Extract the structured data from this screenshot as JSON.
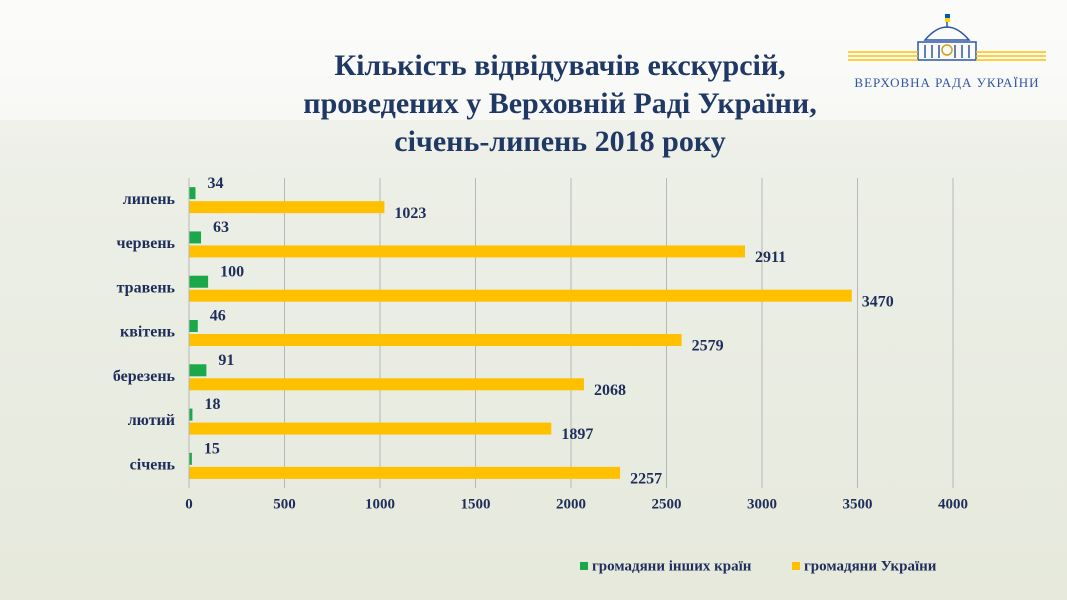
{
  "header": {
    "logo_text": "ВЕРХОВНА РАДА УКРАЇНИ"
  },
  "chart_data": {
    "type": "hbar",
    "title": [
      "Кількість відвідувачів екскурсій,",
      "проведених у Верховній Раді України,",
      "січень-липень 2018 року"
    ],
    "categories": [
      "липень",
      "червень",
      "травень",
      "квітень",
      "березень",
      "лютий",
      "січень"
    ],
    "series": [
      {
        "name": "громадяни інших країн",
        "color": "#1aa84a",
        "values": [
          34,
          63,
          100,
          46,
          91,
          18,
          15
        ]
      },
      {
        "name": "громадяни України",
        "color": "#ffc000",
        "values": [
          1023,
          2911,
          3470,
          2579,
          2068,
          1897,
          2257
        ]
      }
    ],
    "xlim": [
      0,
      4000
    ],
    "xticks": [
      0,
      500,
      1000,
      1500,
      2000,
      2500,
      3000,
      3500,
      4000
    ],
    "grid": true
  }
}
